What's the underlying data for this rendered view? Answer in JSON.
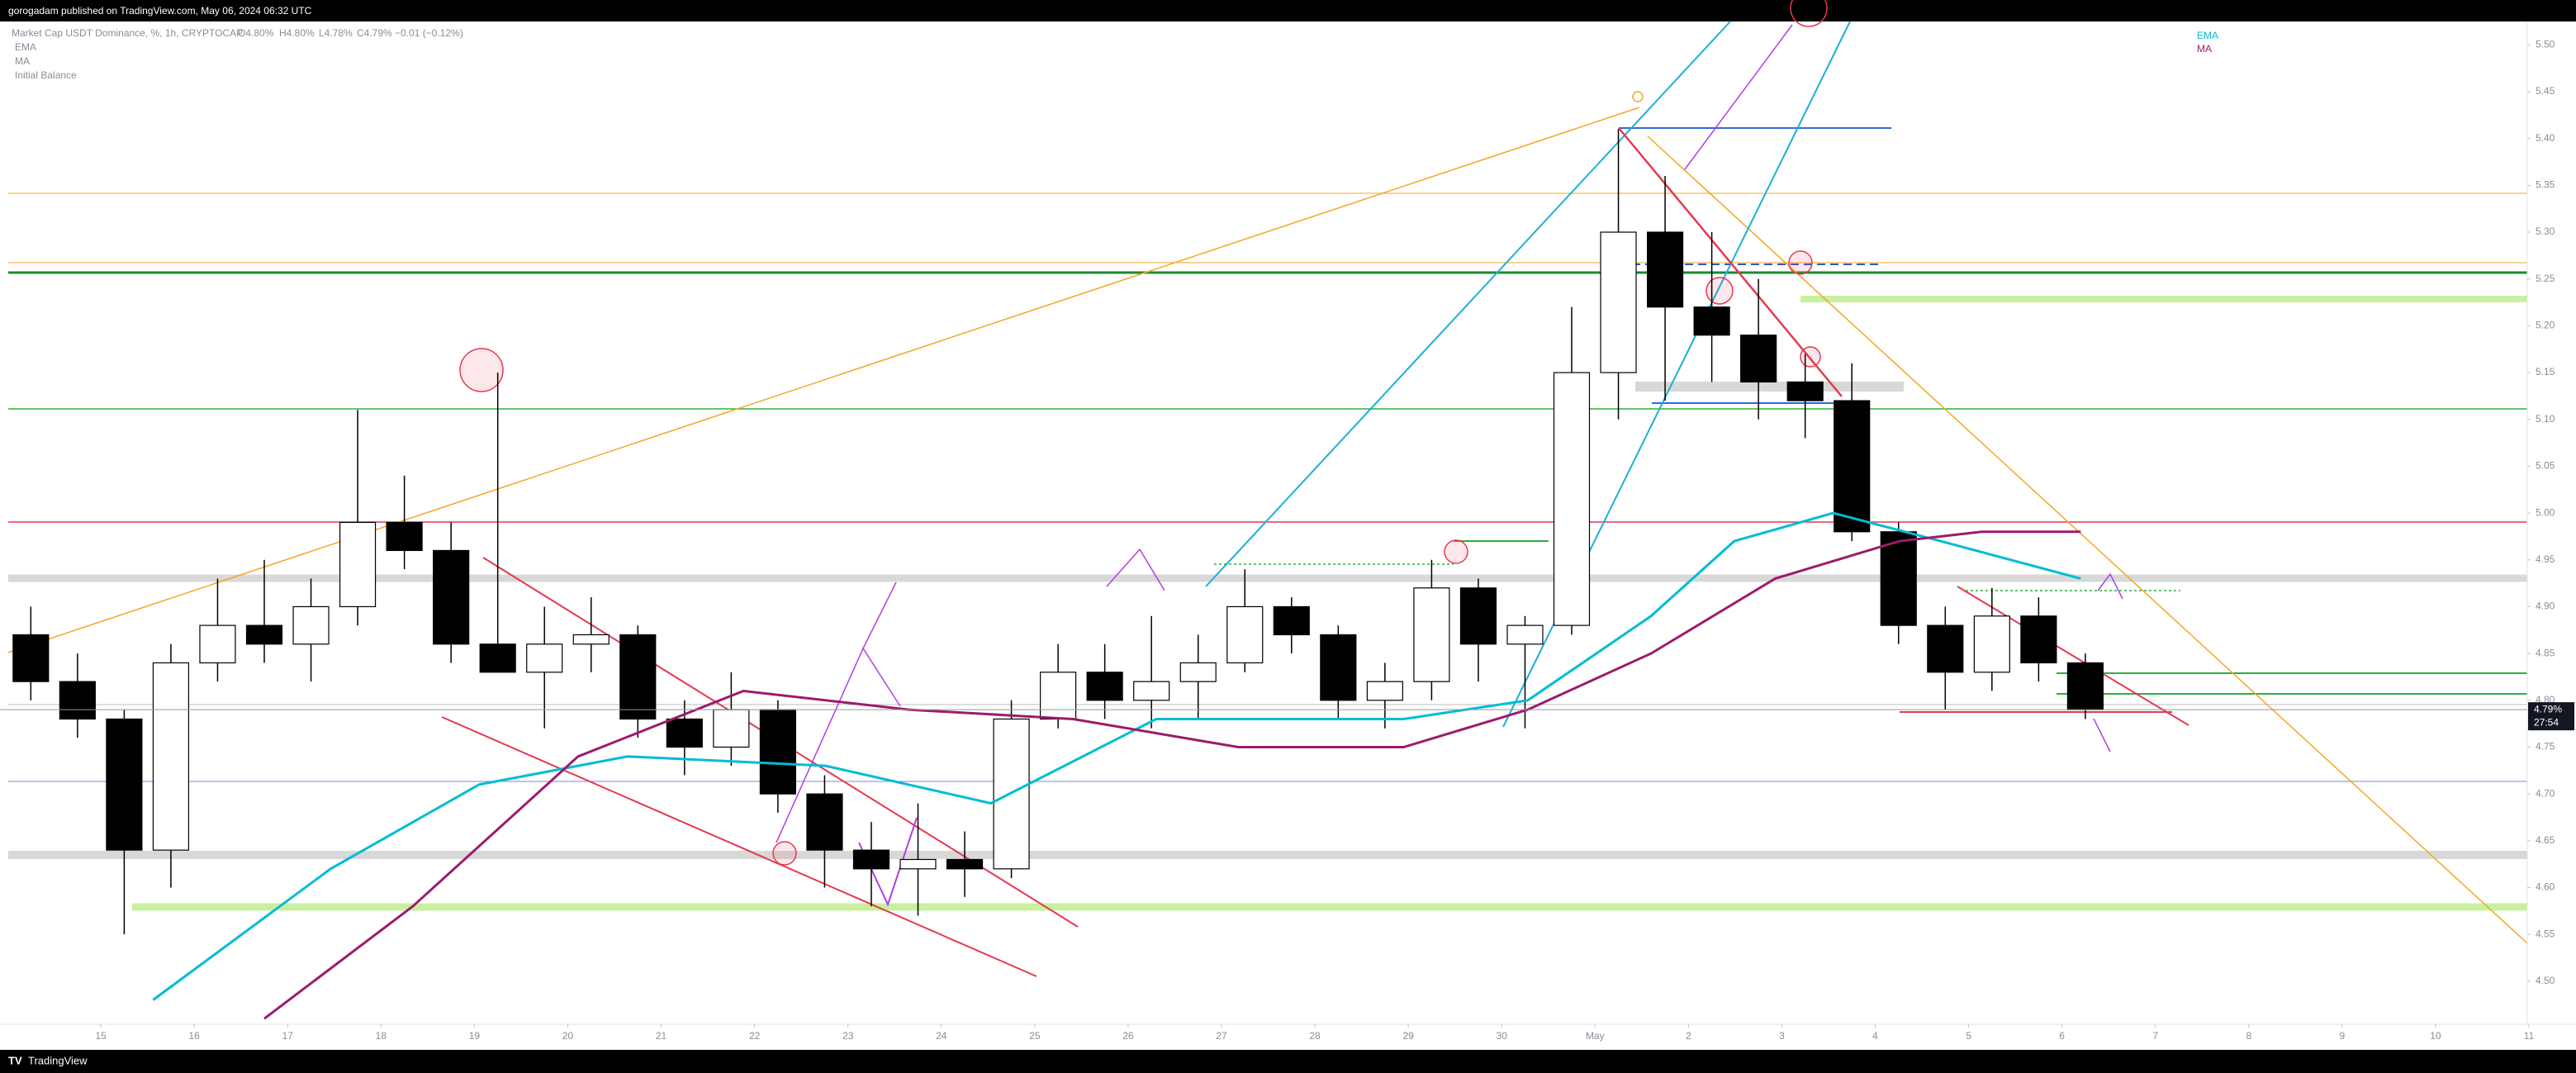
{
  "header": {
    "publisher": "gorogadam published on TradingView.com, May 06, 2024 06:32 UTC",
    "symbol": "Market Cap USDT Dominance, %, 1h, CRYPTOCAP",
    "ohlc": [
      "O4.80%",
      "H4.80%",
      "L4.78%",
      "C4.79%"
    ],
    "change": "−0.01 (−0.12%)",
    "indicators": [
      "EMA",
      "MA",
      "Initial Balance"
    ]
  },
  "footer": {
    "brand": "TradingView"
  },
  "chart_data": {
    "type": "candlestick",
    "x": [
      0.25,
      0.75,
      1.25,
      1.75,
      2.25,
      2.75,
      3.25,
      3.75,
      4.25,
      4.75,
      5.25,
      5.75,
      6.25,
      6.75,
      7.25,
      7.75,
      8.25,
      8.75,
      9.25,
      9.75,
      10.25,
      10.75,
      11.25,
      11.75,
      12.25,
      12.75,
      13.25,
      13.75,
      14.25,
      14.75,
      15.25,
      15.75,
      16.25,
      16.75,
      17.25,
      17.75,
      18.25,
      18.75,
      19.25,
      19.75,
      20.25,
      20.75,
      21.25,
      21.75,
      22.25
    ],
    "open": [
      4.87,
      4.82,
      4.78,
      4.64,
      4.84,
      4.88,
      4.86,
      4.9,
      4.99,
      4.96,
      4.86,
      4.83,
      4.86,
      4.87,
      4.78,
      4.75,
      4.79,
      4.7,
      4.64,
      4.62,
      4.63,
      4.62,
      4.78,
      4.83,
      4.8,
      4.82,
      4.84,
      4.9,
      4.87,
      4.8,
      4.82,
      4.92,
      4.86,
      4.88,
      5.15,
      5.3,
      5.22,
      5.19,
      5.14,
      5.12,
      4.98,
      4.88,
      4.83,
      4.89,
      4.84
    ],
    "high": [
      4.9,
      4.85,
      4.79,
      4.86,
      4.93,
      4.95,
      4.93,
      5.11,
      5.04,
      4.99,
      5.15,
      4.9,
      4.91,
      4.88,
      4.8,
      4.83,
      4.8,
      4.72,
      4.67,
      4.69,
      4.66,
      4.8,
      4.86,
      4.86,
      4.89,
      4.87,
      4.94,
      4.91,
      4.88,
      4.84,
      4.95,
      4.93,
      4.89,
      5.22,
      5.41,
      5.36,
      5.3,
      5.25,
      5.17,
      5.16,
      4.99,
      4.9,
      4.92,
      4.91,
      4.85
    ],
    "low": [
      4.8,
      4.76,
      4.55,
      4.6,
      4.82,
      4.84,
      4.82,
      4.88,
      4.94,
      4.84,
      4.84,
      4.77,
      4.83,
      4.76,
      4.72,
      4.73,
      4.68,
      4.6,
      4.58,
      4.57,
      4.59,
      4.61,
      4.77,
      4.78,
      4.77,
      4.78,
      4.83,
      4.85,
      4.78,
      4.77,
      4.8,
      4.82,
      4.77,
      4.87,
      5.1,
      5.12,
      5.14,
      5.1,
      5.08,
      4.97,
      4.86,
      4.79,
      4.81,
      4.82,
      4.78
    ],
    "close": [
      4.82,
      4.78,
      4.64,
      4.84,
      4.88,
      4.86,
      4.9,
      4.99,
      4.96,
      4.86,
      4.83,
      4.86,
      4.87,
      4.78,
      4.75,
      4.79,
      4.7,
      4.64,
      4.62,
      4.63,
      4.62,
      4.78,
      4.83,
      4.8,
      4.82,
      4.84,
      4.9,
      4.87,
      4.8,
      4.82,
      4.92,
      4.86,
      4.88,
      5.15,
      5.3,
      5.22,
      5.19,
      5.14,
      5.12,
      4.98,
      4.88,
      4.83,
      4.89,
      4.84,
      4.79
    ],
    "up_color": "#ffffff",
    "down_color": "#000000",
    "border_color": "#000000",
    "overlays": [
      {
        "name": "EMA",
        "color": "#00bcd4",
        "x": [
          1.56,
          3.46,
          5.05,
          6.64,
          8.76,
          10.53,
          12.3,
          14.95,
          16.28,
          17.6,
          18.49,
          19.55,
          20.7,
          22.2
        ],
        "values": [
          4.48,
          4.62,
          4.71,
          4.74,
          4.73,
          4.69,
          4.78,
          4.78,
          4.8,
          4.89,
          4.97,
          5.0,
          4.97,
          4.93
        ]
      },
      {
        "name": "MA",
        "color": "#9c1b6b",
        "x": [
          2.75,
          4.34,
          6.11,
          7.88,
          9.65,
          11.41,
          13.18,
          14.95,
          16.28,
          17.6,
          18.93,
          20.26,
          21.14,
          22.2
        ],
        "values": [
          4.46,
          4.58,
          4.74,
          4.81,
          4.79,
          4.78,
          4.75,
          4.75,
          4.79,
          4.85,
          4.93,
          4.97,
          4.98,
          4.98
        ]
      }
    ],
    "last_price": {
      "value": 4.79,
      "label": "4.79%"
    },
    "countdown": "27:54",
    "xlim": [
      -0.08,
      27
    ],
    "xticks": [
      {
        "value": 1,
        "label": "15"
      },
      {
        "value": 2,
        "label": "16"
      },
      {
        "value": 3,
        "label": "17"
      },
      {
        "value": 4,
        "label": "18"
      },
      {
        "value": 5,
        "label": "19"
      },
      {
        "value": 6,
        "label": "20"
      },
      {
        "value": 7,
        "label": "21"
      },
      {
        "value": 8,
        "label": "22"
      },
      {
        "value": 9,
        "label": "23"
      },
      {
        "value": 10,
        "label": "24"
      },
      {
        "value": 11,
        "label": "25"
      },
      {
        "value": 12,
        "label": "26"
      },
      {
        "value": 13,
        "label": "27"
      },
      {
        "value": 14,
        "label": "28"
      },
      {
        "value": 15,
        "label": "29"
      },
      {
        "value": 16,
        "label": "30"
      },
      {
        "value": 17,
        "label": "May"
      },
      {
        "value": 18,
        "label": "2"
      },
      {
        "value": 19,
        "label": "3"
      },
      {
        "value": 20,
        "label": "4"
      },
      {
        "value": 21,
        "label": "5"
      },
      {
        "value": 22,
        "label": "6"
      },
      {
        "value": 23,
        "label": "7"
      },
      {
        "value": 24,
        "label": "8"
      },
      {
        "value": 25,
        "label": "9"
      },
      {
        "value": 26,
        "label": "10"
      },
      {
        "value": 27,
        "label": "11"
      }
    ],
    "ylim": [
      4.454,
      5.525
    ],
    "yticks": [
      {
        "value": 4.5,
        "label": "4.50"
      },
      4.55,
      {
        "value": 4.6,
        "label": "4.60"
      },
      4.65,
      {
        "value": 4.7,
        "label": "4.70"
      },
      4.75,
      {
        "value": 4.8,
        "label": "4.80"
      },
      4.85,
      {
        "value": 4.9,
        "label": "4.90"
      },
      4.95,
      {
        "value": 5.0,
        "label": "5.00"
      },
      5.05,
      {
        "value": 5.1,
        "label": "5.10"
      },
      5.15,
      {
        "value": 5.2,
        "label": "5.20"
      },
      5.25,
      {
        "value": 5.3,
        "label": "5.30"
      },
      5.35,
      {
        "value": 5.4,
        "label": "5.40"
      },
      5.45,
      {
        "value": 5.5,
        "label": "5.50"
      }
    ]
  }
}
